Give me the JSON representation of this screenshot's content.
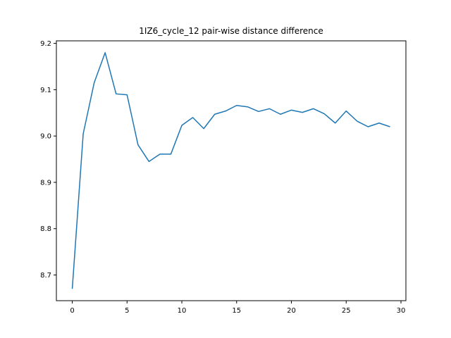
{
  "chart_data": {
    "type": "line",
    "title": "1IZ6_cycle_12 pair-wise distance difference",
    "xlabel": "",
    "ylabel": "",
    "xlim": [
      -1.45,
      30.45
    ],
    "ylim": [
      8.6445,
      9.2055
    ],
    "xticks": [
      0,
      5,
      10,
      15,
      20,
      25,
      30
    ],
    "yticks": [
      8.7,
      8.8,
      8.9,
      9.0,
      9.1,
      9.2
    ],
    "xtick_labels": [
      "0",
      "5",
      "10",
      "15",
      "20",
      "25",
      "30"
    ],
    "ytick_labels": [
      "8.7",
      "8.8",
      "8.9",
      "9.0",
      "9.1",
      "9.2"
    ],
    "grid": false,
    "legend": "none",
    "colors": {
      "line": "#1f77b4"
    },
    "series": [
      {
        "x": [
          0,
          1,
          2,
          3,
          4,
          5,
          6,
          7,
          8,
          9,
          10,
          11,
          12,
          13,
          14,
          15,
          16,
          17,
          18,
          19,
          20,
          21,
          22,
          23,
          24,
          25,
          26,
          27,
          28,
          29
        ],
        "values": [
          8.67,
          9.005,
          9.115,
          9.18,
          9.091,
          9.089,
          8.981,
          8.945,
          8.961,
          8.961,
          9.023,
          9.04,
          9.016,
          9.047,
          9.054,
          9.066,
          9.063,
          9.053,
          9.059,
          9.047,
          9.056,
          9.051,
          9.059,
          9.048,
          9.028,
          9.054,
          9.032,
          9.02,
          9.028,
          9.02
        ]
      }
    ]
  }
}
